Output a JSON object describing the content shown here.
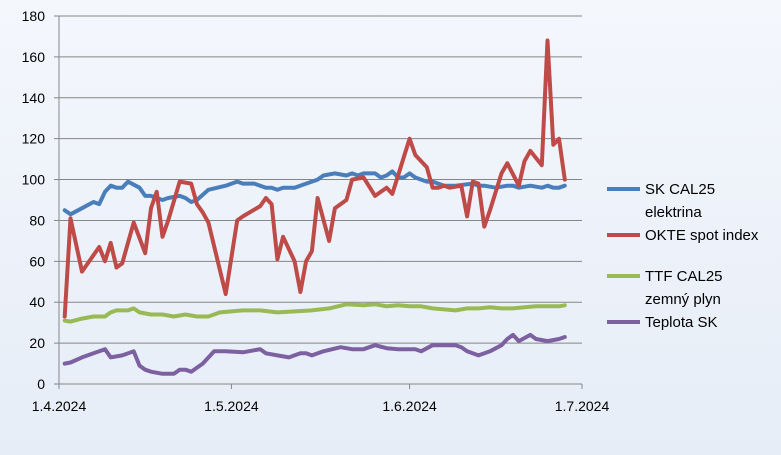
{
  "chart_data": {
    "type": "line",
    "title": "",
    "xlabel": "",
    "ylabel": "",
    "ylim": [
      0,
      180
    ],
    "yticks": [
      0,
      20,
      40,
      60,
      80,
      100,
      120,
      140,
      160,
      180
    ],
    "xlim": [
      "2024-04-01",
      "2024-07-01"
    ],
    "xticks": [
      "1.4.2024",
      "1.5.2024",
      "1.6.2024",
      "1.7.2024"
    ],
    "grid": "horizontal",
    "legend_position": "right",
    "series": [
      {
        "name": "SK CAL25 elektrina",
        "legend_lines": [
          "SK CAL25",
          "elektrina"
        ],
        "color": "#4a7ebb",
        "x": [
          "2024-04-02",
          "2024-04-03",
          "2024-04-05",
          "2024-04-07",
          "2024-04-08",
          "2024-04-09",
          "2024-04-10",
          "2024-04-11",
          "2024-04-12",
          "2024-04-13",
          "2024-04-15",
          "2024-04-16",
          "2024-04-17",
          "2024-04-18",
          "2024-04-19",
          "2024-04-20",
          "2024-04-22",
          "2024-04-23",
          "2024-04-24",
          "2024-04-25",
          "2024-04-27",
          "2024-04-30",
          "2024-05-02",
          "2024-05-03",
          "2024-05-05",
          "2024-05-06",
          "2024-05-07",
          "2024-05-08",
          "2024-05-09",
          "2024-05-10",
          "2024-05-12",
          "2024-05-14",
          "2024-05-15",
          "2024-05-16",
          "2024-05-17",
          "2024-05-19",
          "2024-05-21",
          "2024-05-22",
          "2024-05-23",
          "2024-05-24",
          "2024-05-26",
          "2024-05-27",
          "2024-05-28",
          "2024-05-29",
          "2024-05-30",
          "2024-05-31",
          "2024-06-01",
          "2024-06-02",
          "2024-06-03",
          "2024-06-04",
          "2024-06-05",
          "2024-06-06",
          "2024-06-07",
          "2024-06-09",
          "2024-06-12",
          "2024-06-13",
          "2024-06-14",
          "2024-06-16",
          "2024-06-18",
          "2024-06-19",
          "2024-06-20",
          "2024-06-22",
          "2024-06-24",
          "2024-06-25",
          "2024-06-26",
          "2024-06-27",
          "2024-06-28"
        ],
        "y": [
          85,
          83,
          86,
          89,
          88,
          94,
          97,
          96,
          96,
          99,
          96,
          92,
          92,
          91,
          90,
          91,
          92,
          91,
          89,
          90,
          95,
          97,
          99,
          98,
          98,
          97,
          96,
          96,
          95,
          96,
          96,
          98,
          99,
          100,
          102,
          103,
          102,
          103,
          102,
          103,
          103,
          101,
          102,
          104,
          101,
          101,
          103,
          101,
          100,
          99,
          99,
          98,
          97,
          97,
          98,
          97,
          97,
          96,
          97,
          97,
          96,
          97,
          96,
          97,
          96,
          96,
          97
        ]
      },
      {
        "name": "OKTE spot index",
        "legend_lines": [
          "OKTE spot index"
        ],
        "color": "#be4b48",
        "x": [
          "2024-04-02",
          "2024-04-03",
          "2024-04-05",
          "2024-04-08",
          "2024-04-09",
          "2024-04-10",
          "2024-04-11",
          "2024-04-12",
          "2024-04-14",
          "2024-04-16",
          "2024-04-17",
          "2024-04-18",
          "2024-04-19",
          "2024-04-20",
          "2024-04-22",
          "2024-04-24",
          "2024-04-25",
          "2024-04-26",
          "2024-04-27",
          "2024-04-30",
          "2024-05-02",
          "2024-05-03",
          "2024-05-06",
          "2024-05-07",
          "2024-05-08",
          "2024-05-09",
          "2024-05-10",
          "2024-05-12",
          "2024-05-13",
          "2024-05-14",
          "2024-05-15",
          "2024-05-16",
          "2024-05-18",
          "2024-05-19",
          "2024-05-21",
          "2024-05-22",
          "2024-05-24",
          "2024-05-26",
          "2024-05-28",
          "2024-05-29",
          "2024-05-30",
          "2024-05-31",
          "2024-06-01",
          "2024-06-02",
          "2024-06-04",
          "2024-06-05",
          "2024-06-06",
          "2024-06-07",
          "2024-06-08",
          "2024-06-10",
          "2024-06-11",
          "2024-06-12",
          "2024-06-13",
          "2024-06-14",
          "2024-06-15",
          "2024-06-17",
          "2024-06-18",
          "2024-06-20",
          "2024-06-21",
          "2024-06-22",
          "2024-06-24",
          "2024-06-25",
          "2024-06-26",
          "2024-06-27",
          "2024-06-28"
        ],
        "y": [
          33,
          81,
          55,
          67,
          60,
          69,
          57,
          59,
          79,
          64,
          86,
          94,
          72,
          80,
          99,
          98,
          88,
          84,
          79,
          44,
          80,
          82,
          87,
          91,
          88,
          61,
          72,
          60,
          45,
          60,
          65,
          91,
          70,
          86,
          90,
          100,
          101,
          92,
          96,
          93,
          102,
          111,
          120,
          112,
          106,
          96,
          96,
          97,
          96,
          97,
          82,
          99,
          98,
          77,
          85,
          103,
          108,
          97,
          109,
          114,
          107,
          168,
          117,
          120,
          100
        ]
      },
      {
        "name": "TTF CAL25 zemný plyn",
        "legend_lines": [
          "TTF CAL25",
          "zemný plyn"
        ],
        "color": "#98b954",
        "x": [
          "2024-04-02",
          "2024-04-03",
          "2024-04-05",
          "2024-04-07",
          "2024-04-09",
          "2024-04-10",
          "2024-04-11",
          "2024-04-13",
          "2024-04-14",
          "2024-04-15",
          "2024-04-17",
          "2024-04-19",
          "2024-04-21",
          "2024-04-23",
          "2024-04-25",
          "2024-04-27",
          "2024-04-29",
          "2024-05-01",
          "2024-05-03",
          "2024-05-06",
          "2024-05-09",
          "2024-05-12",
          "2024-05-15",
          "2024-05-18",
          "2024-05-21",
          "2024-05-24",
          "2024-05-26",
          "2024-05-28",
          "2024-05-30",
          "2024-06-01",
          "2024-06-03",
          "2024-06-05",
          "2024-06-07",
          "2024-06-09",
          "2024-06-11",
          "2024-06-13",
          "2024-06-15",
          "2024-06-17",
          "2024-06-19",
          "2024-06-21",
          "2024-06-23",
          "2024-06-25",
          "2024-06-27",
          "2024-06-28"
        ],
        "y": [
          31,
          30.5,
          32,
          33,
          33,
          35,
          36,
          36,
          37,
          35,
          34,
          34,
          33,
          34,
          33,
          33,
          35,
          35.5,
          36,
          36,
          35,
          35.5,
          36,
          37,
          39,
          38.5,
          39,
          38,
          38.5,
          38,
          38,
          37,
          36.5,
          36,
          37,
          37,
          37.5,
          37,
          37,
          37.5,
          38,
          38,
          38,
          38.5
        ]
      },
      {
        "name": "Teplota SK",
        "legend_lines": [
          "Teplota SK"
        ],
        "color": "#7d60a0",
        "x": [
          "2024-04-02",
          "2024-04-03",
          "2024-04-05",
          "2024-04-07",
          "2024-04-09",
          "2024-04-10",
          "2024-04-12",
          "2024-04-14",
          "2024-04-15",
          "2024-04-16",
          "2024-04-17",
          "2024-04-19",
          "2024-04-21",
          "2024-04-22",
          "2024-04-23",
          "2024-04-24",
          "2024-04-26",
          "2024-04-28",
          "2024-04-30",
          "2024-05-03",
          "2024-05-06",
          "2024-05-07",
          "2024-05-09",
          "2024-05-11",
          "2024-05-13",
          "2024-05-14",
          "2024-05-15",
          "2024-05-17",
          "2024-05-20",
          "2024-05-22",
          "2024-05-24",
          "2024-05-26",
          "2024-05-28",
          "2024-05-30",
          "2024-06-01",
          "2024-06-02",
          "2024-06-03",
          "2024-06-05",
          "2024-06-07",
          "2024-06-09",
          "2024-06-10",
          "2024-06-11",
          "2024-06-13",
          "2024-06-15",
          "2024-06-17",
          "2024-06-18",
          "2024-06-19",
          "2024-06-20",
          "2024-06-22",
          "2024-06-23",
          "2024-06-25",
          "2024-06-27",
          "2024-06-28"
        ],
        "y": [
          10,
          10.5,
          13,
          15,
          17,
          13,
          14,
          16,
          9,
          7,
          6,
          5,
          5,
          7,
          7,
          6,
          10,
          16,
          16,
          15.5,
          17,
          15,
          14,
          13,
          15,
          15,
          14,
          16,
          18,
          17,
          17,
          19,
          17.5,
          17,
          17,
          17,
          16,
          19,
          19,
          19,
          18,
          16,
          14,
          16,
          19,
          22,
          24,
          21,
          24,
          22,
          21,
          22,
          23
        ]
      }
    ]
  }
}
